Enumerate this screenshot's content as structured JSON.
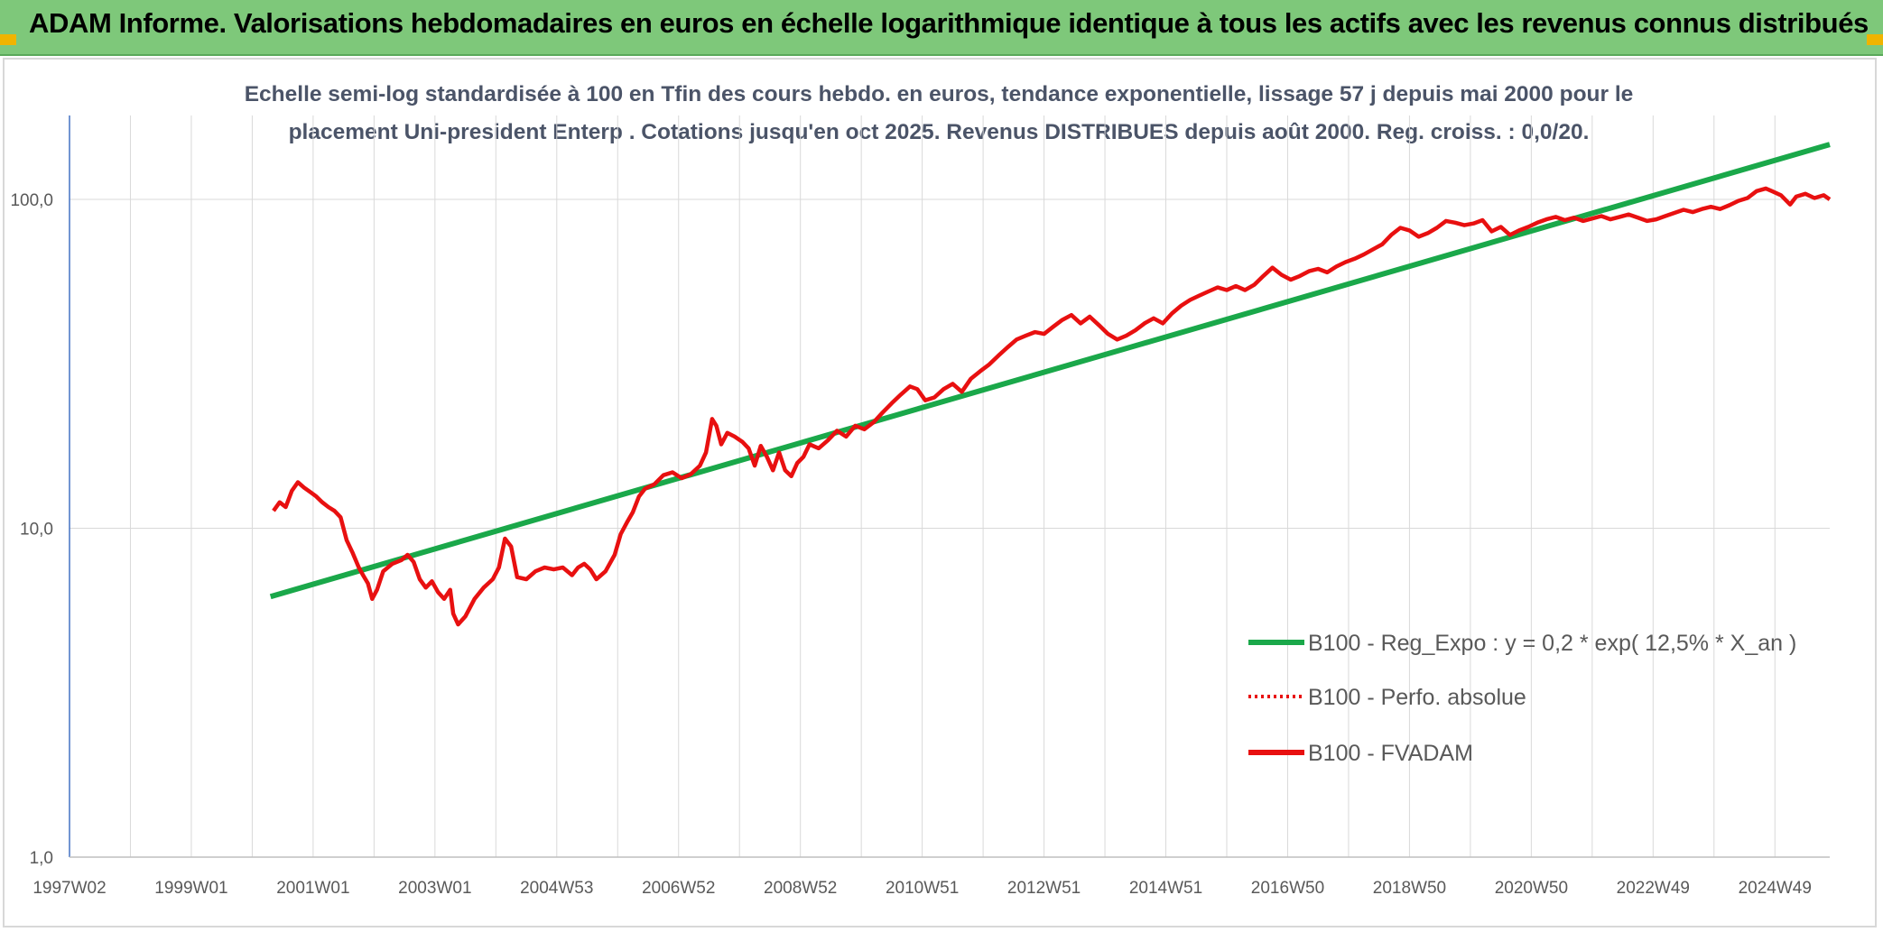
{
  "header": {
    "title": "ADAM Informe. Valorisations hebdomadaires en euros en échelle logarithmique identique à tous les actifs avec les revenus connus distribués"
  },
  "colors": {
    "banner": "#7ec87a",
    "trend": "#1aa84a",
    "price": "#e81010",
    "perf": "#e81010",
    "grid": "#d9d9d9"
  },
  "chart_data": {
    "type": "line",
    "title_lines": [
      "Echelle semi-log standardisée à 100 en Tfin des cours hebdo. en euros, tendance exponentielle, lissage 57 j depuis mai 2000 pour le",
      "placement Uni-president Enterp . Cotations jusqu'en oct 2025. Revenus DISTRIBUES depuis août 2000. Reg. croiss. : 0,0/20."
    ],
    "y_scale": "log",
    "ylim": [
      1,
      180
    ],
    "y_ticks": [
      {
        "value": 1,
        "label": "1,0"
      },
      {
        "value": 10,
        "label": "10,0"
      },
      {
        "value": 100,
        "label": "100,0"
      }
    ],
    "x_range": [
      1997.0,
      2025.9
    ],
    "x_ticks": [
      {
        "x": 1997.0,
        "label": "1997W02"
      },
      {
        "x": 1999.0,
        "label": "1999W01"
      },
      {
        "x": 2001.0,
        "label": "2001W01"
      },
      {
        "x": 2003.0,
        "label": "2003W01"
      },
      {
        "x": 2005.0,
        "label": "2004W53"
      },
      {
        "x": 2007.0,
        "label": "2006W52"
      },
      {
        "x": 2009.0,
        "label": "2008W52"
      },
      {
        "x": 2011.0,
        "label": "2010W51"
      },
      {
        "x": 2013.0,
        "label": "2012W51"
      },
      {
        "x": 2015.0,
        "label": "2014W51"
      },
      {
        "x": 2017.0,
        "label": "2016W50"
      },
      {
        "x": 2019.0,
        "label": "2018W50"
      },
      {
        "x": 2021.0,
        "label": "2020W50"
      },
      {
        "x": 2023.0,
        "label": "2022W49"
      },
      {
        "x": 2025.0,
        "label": "2024W49"
      }
    ],
    "grid": true,
    "legend_position": "bottom-right",
    "series": [
      {
        "name": "B100 - Reg_Expo : y = 0,2 * exp( 12,5% *  X_an )",
        "style": "trend",
        "points": [
          [
            2000.3,
            6.2
          ],
          [
            2025.9,
            147
          ]
        ]
      },
      {
        "name": "B100 - Perfo. absolue",
        "style": "dotted",
        "points": []
      },
      {
        "name": "B100 - FVADAM",
        "style": "price",
        "points": [
          [
            2000.35,
            11.3
          ],
          [
            2000.45,
            12.0
          ],
          [
            2000.55,
            11.6
          ],
          [
            2000.65,
            13.0
          ],
          [
            2000.75,
            13.8
          ],
          [
            2000.85,
            13.3
          ],
          [
            2000.95,
            12.9
          ],
          [
            2001.05,
            12.5
          ],
          [
            2001.15,
            12.0
          ],
          [
            2001.25,
            11.6
          ],
          [
            2001.35,
            11.3
          ],
          [
            2001.45,
            10.8
          ],
          [
            2001.55,
            9.2
          ],
          [
            2001.65,
            8.4
          ],
          [
            2001.75,
            7.6
          ],
          [
            2001.82,
            7.2
          ],
          [
            2001.9,
            6.8
          ],
          [
            2001.97,
            6.1
          ],
          [
            2002.05,
            6.5
          ],
          [
            2002.15,
            7.4
          ],
          [
            2002.3,
            7.8
          ],
          [
            2002.45,
            8.0
          ],
          [
            2002.55,
            8.3
          ],
          [
            2002.65,
            7.9
          ],
          [
            2002.75,
            7.0
          ],
          [
            2002.85,
            6.6
          ],
          [
            2002.95,
            6.9
          ],
          [
            2003.05,
            6.4
          ],
          [
            2003.15,
            6.1
          ],
          [
            2003.25,
            6.5
          ],
          [
            2003.3,
            5.5
          ],
          [
            2003.38,
            5.1
          ],
          [
            2003.5,
            5.4
          ],
          [
            2003.65,
            6.1
          ],
          [
            2003.8,
            6.6
          ],
          [
            2003.95,
            7.0
          ],
          [
            2004.05,
            7.6
          ],
          [
            2004.15,
            9.3
          ],
          [
            2004.25,
            8.8
          ],
          [
            2004.35,
            7.1
          ],
          [
            2004.5,
            7.0
          ],
          [
            2004.65,
            7.4
          ],
          [
            2004.8,
            7.6
          ],
          [
            2004.95,
            7.5
          ],
          [
            2005.1,
            7.6
          ],
          [
            2005.25,
            7.2
          ],
          [
            2005.35,
            7.6
          ],
          [
            2005.45,
            7.8
          ],
          [
            2005.55,
            7.5
          ],
          [
            2005.65,
            7.0
          ],
          [
            2005.8,
            7.4
          ],
          [
            2005.95,
            8.3
          ],
          [
            2006.05,
            9.6
          ],
          [
            2006.15,
            10.4
          ],
          [
            2006.25,
            11.2
          ],
          [
            2006.35,
            12.5
          ],
          [
            2006.45,
            13.2
          ],
          [
            2006.6,
            13.6
          ],
          [
            2006.75,
            14.5
          ],
          [
            2006.9,
            14.8
          ],
          [
            2007.05,
            14.2
          ],
          [
            2007.2,
            14.6
          ],
          [
            2007.35,
            15.5
          ],
          [
            2007.45,
            17.0
          ],
          [
            2007.55,
            21.5
          ],
          [
            2007.62,
            20.5
          ],
          [
            2007.7,
            18.0
          ],
          [
            2007.8,
            19.5
          ],
          [
            2007.92,
            19.0
          ],
          [
            2008.05,
            18.3
          ],
          [
            2008.15,
            17.5
          ],
          [
            2008.25,
            15.5
          ],
          [
            2008.35,
            17.8
          ],
          [
            2008.45,
            16.5
          ],
          [
            2008.55,
            15.0
          ],
          [
            2008.65,
            17.0
          ],
          [
            2008.75,
            15.0
          ],
          [
            2008.85,
            14.4
          ],
          [
            2008.95,
            15.8
          ],
          [
            2009.05,
            16.5
          ],
          [
            2009.15,
            18.0
          ],
          [
            2009.3,
            17.5
          ],
          [
            2009.45,
            18.5
          ],
          [
            2009.6,
            19.8
          ],
          [
            2009.75,
            19.0
          ],
          [
            2009.9,
            20.5
          ],
          [
            2010.05,
            20.0
          ],
          [
            2010.2,
            21.0
          ],
          [
            2010.35,
            22.5
          ],
          [
            2010.5,
            24.0
          ],
          [
            2010.65,
            25.5
          ],
          [
            2010.8,
            27.0
          ],
          [
            2010.92,
            26.5
          ],
          [
            2011.05,
            24.5
          ],
          [
            2011.2,
            25.0
          ],
          [
            2011.35,
            26.5
          ],
          [
            2011.5,
            27.5
          ],
          [
            2011.65,
            26.0
          ],
          [
            2011.8,
            28.5
          ],
          [
            2011.95,
            30.0
          ],
          [
            2012.1,
            31.5
          ],
          [
            2012.25,
            33.5
          ],
          [
            2012.4,
            35.5
          ],
          [
            2012.55,
            37.5
          ],
          [
            2012.7,
            38.5
          ],
          [
            2012.85,
            39.5
          ],
          [
            2013.0,
            39.0
          ],
          [
            2013.15,
            41.0
          ],
          [
            2013.3,
            43.0
          ],
          [
            2013.45,
            44.5
          ],
          [
            2013.6,
            42.0
          ],
          [
            2013.75,
            44.0
          ],
          [
            2013.9,
            41.5
          ],
          [
            2014.05,
            39.0
          ],
          [
            2014.2,
            37.5
          ],
          [
            2014.35,
            38.5
          ],
          [
            2014.5,
            40.0
          ],
          [
            2014.65,
            42.0
          ],
          [
            2014.8,
            43.5
          ],
          [
            2014.95,
            42.0
          ],
          [
            2015.1,
            45.0
          ],
          [
            2015.25,
            47.5
          ],
          [
            2015.4,
            49.5
          ],
          [
            2015.55,
            51.0
          ],
          [
            2015.7,
            52.5
          ],
          [
            2015.85,
            54.0
          ],
          [
            2016.0,
            53.0
          ],
          [
            2016.15,
            54.5
          ],
          [
            2016.3,
            53.0
          ],
          [
            2016.45,
            55.0
          ],
          [
            2016.6,
            58.5
          ],
          [
            2016.75,
            62.0
          ],
          [
            2016.9,
            59.0
          ],
          [
            2017.05,
            57.0
          ],
          [
            2017.2,
            58.5
          ],
          [
            2017.35,
            60.5
          ],
          [
            2017.5,
            61.5
          ],
          [
            2017.65,
            60.0
          ],
          [
            2017.8,
            62.5
          ],
          [
            2017.95,
            64.5
          ],
          [
            2018.1,
            66.0
          ],
          [
            2018.25,
            68.0
          ],
          [
            2018.4,
            70.5
          ],
          [
            2018.55,
            73.0
          ],
          [
            2018.7,
            78.0
          ],
          [
            2018.85,
            82.0
          ],
          [
            2019.0,
            80.5
          ],
          [
            2019.15,
            77.0
          ],
          [
            2019.3,
            79.0
          ],
          [
            2019.45,
            82.0
          ],
          [
            2019.6,
            86.0
          ],
          [
            2019.75,
            85.0
          ],
          [
            2019.9,
            83.5
          ],
          [
            2020.05,
            84.5
          ],
          [
            2020.2,
            86.5
          ],
          [
            2020.35,
            80.0
          ],
          [
            2020.5,
            82.5
          ],
          [
            2020.65,
            78.0
          ],
          [
            2020.8,
            80.5
          ],
          [
            2020.95,
            82.5
          ],
          [
            2021.1,
            85.0
          ],
          [
            2021.25,
            87.0
          ],
          [
            2021.4,
            88.5
          ],
          [
            2021.55,
            86.5
          ],
          [
            2021.7,
            88.0
          ],
          [
            2021.85,
            86.0
          ],
          [
            2022.0,
            87.5
          ],
          [
            2022.15,
            89.0
          ],
          [
            2022.3,
            87.0
          ],
          [
            2022.45,
            88.5
          ],
          [
            2022.6,
            90.0
          ],
          [
            2022.75,
            88.0
          ],
          [
            2022.9,
            86.0
          ],
          [
            2023.05,
            87.0
          ],
          [
            2023.2,
            89.0
          ],
          [
            2023.35,
            91.0
          ],
          [
            2023.5,
            93.0
          ],
          [
            2023.65,
            91.5
          ],
          [
            2023.8,
            93.5
          ],
          [
            2023.95,
            95.0
          ],
          [
            2024.1,
            93.5
          ],
          [
            2024.25,
            96.0
          ],
          [
            2024.4,
            99.0
          ],
          [
            2024.55,
            101.0
          ],
          [
            2024.7,
            106.0
          ],
          [
            2024.85,
            108.0
          ],
          [
            2024.95,
            106.0
          ],
          [
            2025.1,
            103.0
          ],
          [
            2025.25,
            96.5
          ],
          [
            2025.35,
            102.0
          ],
          [
            2025.5,
            104.0
          ],
          [
            2025.65,
            101.0
          ],
          [
            2025.8,
            103.0
          ],
          [
            2025.9,
            100.0
          ]
        ]
      }
    ]
  }
}
